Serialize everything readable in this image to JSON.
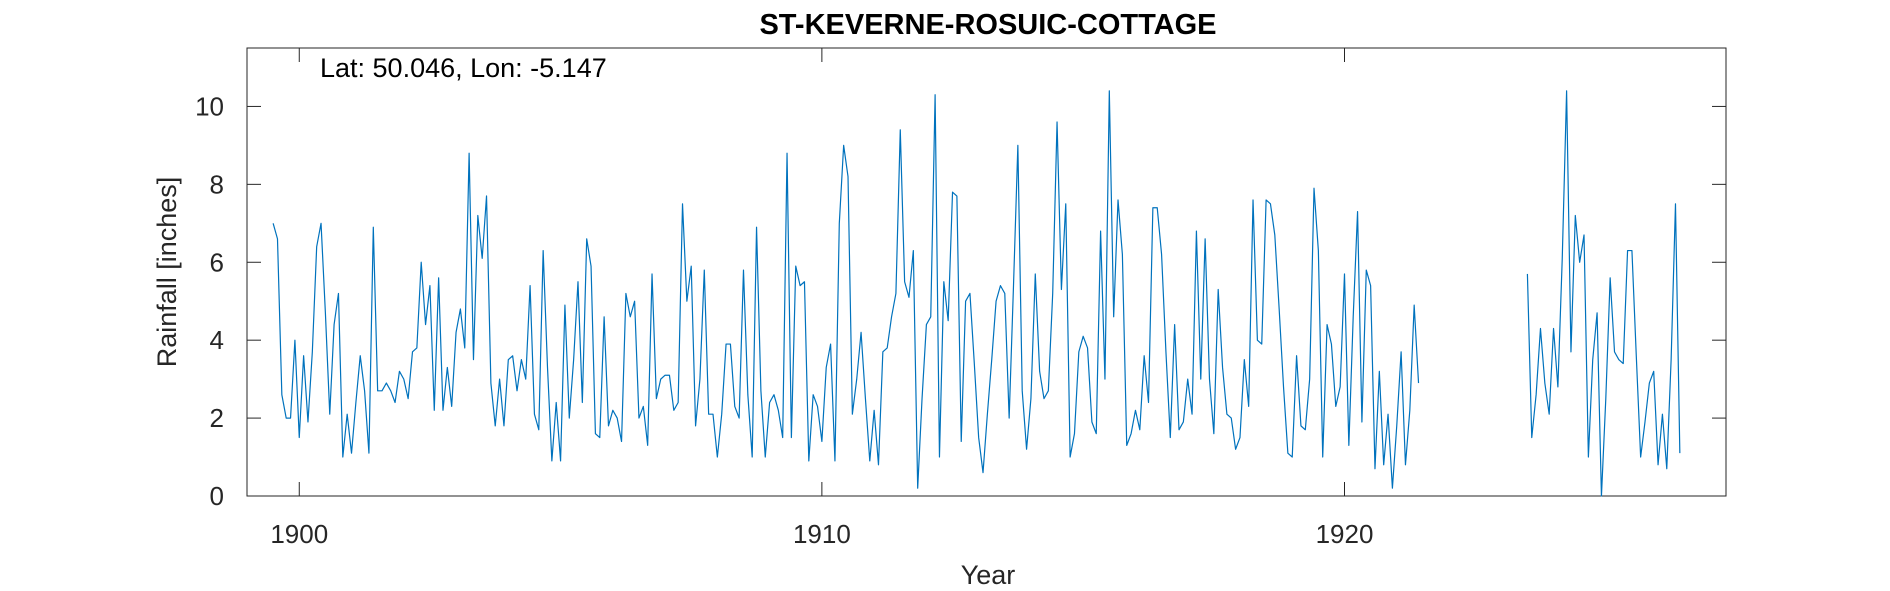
{
  "chart_data": {
    "type": "line",
    "title": "ST-KEVERNE-ROSUIC-COTTAGE",
    "annotation": "Lat: 50.046, Lon: -5.147",
    "xlabel": "Year",
    "ylabel": "Rainfall [inches]",
    "xlim": [
      1899,
      1927.3
    ],
    "ylim": [
      0,
      11.5
    ],
    "xticks": [
      1900,
      1910,
      1920
    ],
    "xtick_labels": [
      "1900",
      "1910",
      "1920"
    ],
    "yticks": [
      0,
      2,
      4,
      6,
      8,
      10
    ],
    "ytick_labels": [
      "0",
      "2",
      "4",
      "6",
      "8",
      "10"
    ],
    "grid": false,
    "box": true,
    "color": "#0072BD",
    "series": [
      {
        "x_start": "1899-07",
        "x_step": "1 month",
        "values": [
          7.0,
          6.6,
          2.6,
          2.0,
          2.0,
          4.0,
          1.5,
          3.6,
          1.9,
          3.7,
          6.4,
          7.0,
          4.7,
          2.1,
          4.4,
          5.2,
          1.0,
          2.1,
          1.1,
          2.4,
          3.6,
          2.7,
          1.1,
          6.9,
          2.7,
          2.7,
          2.9,
          2.7,
          2.4,
          3.2,
          3.0,
          2.5,
          3.7,
          3.8,
          6.0,
          4.4,
          5.4,
          2.2,
          5.6,
          2.2,
          3.3,
          2.3,
          4.2,
          4.8,
          3.8,
          8.8,
          3.5,
          7.2,
          6.1,
          7.7,
          2.9,
          1.8,
          3.0,
          1.8,
          3.5,
          3.6,
          2.7,
          3.5,
          3.0,
          5.4,
          2.1,
          1.7,
          6.3,
          3.3,
          0.9,
          2.4,
          0.9,
          4.9,
          2.0,
          3.5,
          5.5,
          2.4,
          6.6,
          5.9,
          1.6,
          1.5,
          4.6,
          1.8,
          2.2,
          2.0,
          1.4,
          5.2,
          4.6,
          5.0,
          2.0,
          2.3,
          1.3,
          5.7,
          2.5,
          3.0,
          3.1,
          3.1,
          2.2,
          2.4,
          7.5,
          5.0,
          5.9,
          1.8,
          3.0,
          5.8,
          2.1,
          2.1,
          1.0,
          2.1,
          3.9,
          3.9,
          2.3,
          2.0,
          5.8,
          2.6,
          1.0,
          6.9,
          2.7,
          1.0,
          2.4,
          2.6,
          2.2,
          1.5,
          8.8,
          1.5,
          5.9,
          5.4,
          5.5,
          0.9,
          2.6,
          2.3,
          1.4,
          3.3,
          3.9,
          0.9,
          7.0,
          9.0,
          8.2,
          2.1,
          3.0,
          4.2,
          2.5,
          0.9,
          2.2,
          0.8,
          3.7,
          3.8,
          4.6,
          5.2,
          9.4,
          5.5,
          5.1,
          6.3,
          0.2,
          2.5,
          4.4,
          4.6,
          10.3,
          1.0,
          5.5,
          4.5,
          7.8,
          7.7,
          1.4,
          5.0,
          5.2,
          3.4,
          1.5,
          0.6,
          2.1,
          3.5,
          5.0,
          5.4,
          5.2,
          2.0,
          5.4,
          9.0,
          2.7,
          1.2,
          2.5,
          5.7,
          3.2,
          2.5,
          2.7,
          5.2,
          9.6,
          5.3,
          7.5,
          1.0,
          1.6,
          3.7,
          4.1,
          3.8,
          1.9,
          1.6,
          6.8,
          3.0,
          10.4,
          4.6,
          7.6,
          6.2,
          1.3,
          1.6,
          2.2,
          1.7,
          3.6,
          2.4,
          7.4,
          7.4,
          6.2,
          3.7,
          1.5,
          4.4,
          1.7,
          1.9,
          3.0,
          2.1,
          6.8,
          3.0,
          6.6,
          3.0,
          1.6,
          5.3,
          3.3,
          2.1,
          2.0,
          1.2,
          1.5,
          3.5,
          2.3,
          7.6,
          4.0,
          3.9,
          7.6,
          7.5,
          6.7,
          4.8,
          2.8,
          1.1,
          1.0,
          3.6,
          1.8,
          1.7,
          3.0,
          7.9,
          6.3,
          1.0,
          4.4,
          3.9,
          2.3,
          2.8,
          5.7,
          1.3,
          4.6,
          7.3,
          1.9,
          5.8,
          5.4,
          0.7,
          3.2,
          0.8,
          2.1,
          0.2,
          1.8,
          3.7,
          0.8,
          2.2,
          4.9,
          2.9,
          null,
          null,
          null,
          null,
          null,
          null,
          null,
          null,
          null,
          null,
          null,
          null,
          null,
          null,
          null,
          null,
          null,
          null,
          null,
          null,
          null,
          null,
          null,
          null,
          5.7,
          1.5,
          2.6,
          4.3,
          2.9,
          2.1,
          4.3,
          2.8,
          6.1,
          10.4,
          3.7,
          7.2,
          6.0,
          6.7,
          1.0,
          3.5,
          4.7,
          0.0,
          2.5,
          5.6,
          3.7,
          3.5,
          3.4,
          6.3,
          6.3,
          3.6,
          1.0,
          1.9,
          2.9,
          3.2,
          0.8,
          2.1,
          0.7,
          3.5,
          7.5,
          1.1
        ]
      }
    ]
  }
}
